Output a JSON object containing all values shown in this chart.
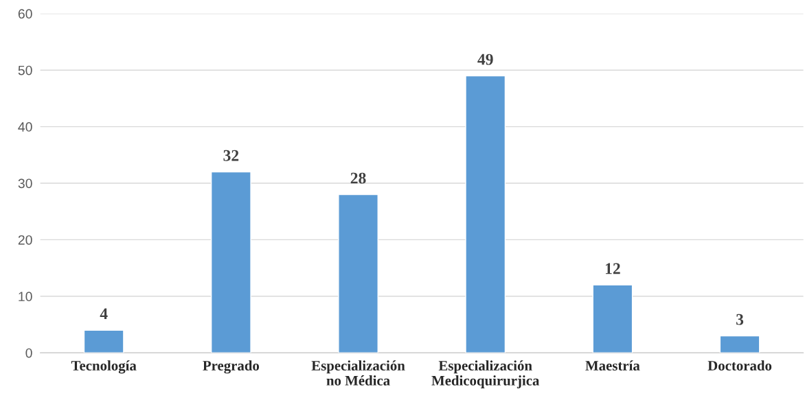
{
  "chart_data": {
    "type": "bar",
    "categories": [
      "Tecnología",
      "Pregrado",
      "Especialización\nno Médica",
      "Especialización\nMedicoquirurjica",
      "Maestría",
      "Doctorado"
    ],
    "values": [
      4,
      32,
      28,
      49,
      12,
      3
    ],
    "color": "#5b9bd5",
    "ylim": [
      0,
      60
    ],
    "yticks": [
      0,
      10,
      20,
      30,
      40,
      50,
      60
    ],
    "grid": "y",
    "data_labels": true
  }
}
